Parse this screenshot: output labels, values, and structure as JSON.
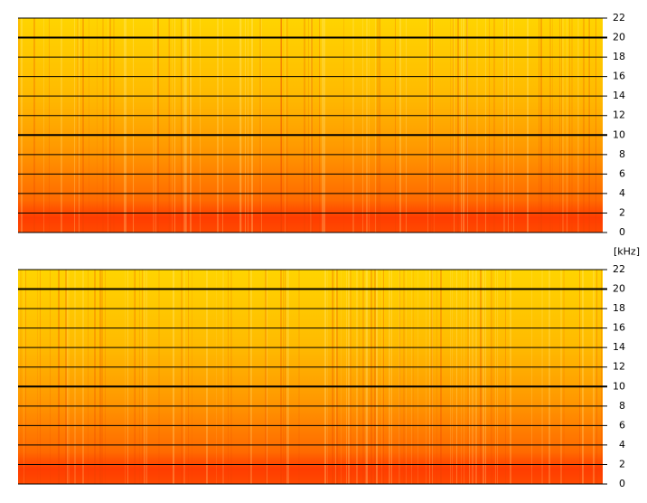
{
  "chart_data": [
    {
      "type": "spectrogram",
      "y_label": "[kHz]",
      "ylim": [
        0,
        22
      ],
      "yticks": [
        0,
        2,
        4,
        6,
        8,
        10,
        12,
        14,
        16,
        18,
        20,
        22
      ],
      "grid": true
    },
    {
      "type": "spectrogram",
      "ylim": [
        0,
        22
      ],
      "yticks": [
        0,
        2,
        4,
        6,
        8,
        10,
        12,
        14,
        16,
        18,
        20,
        22
      ],
      "grid": true
    }
  ]
}
